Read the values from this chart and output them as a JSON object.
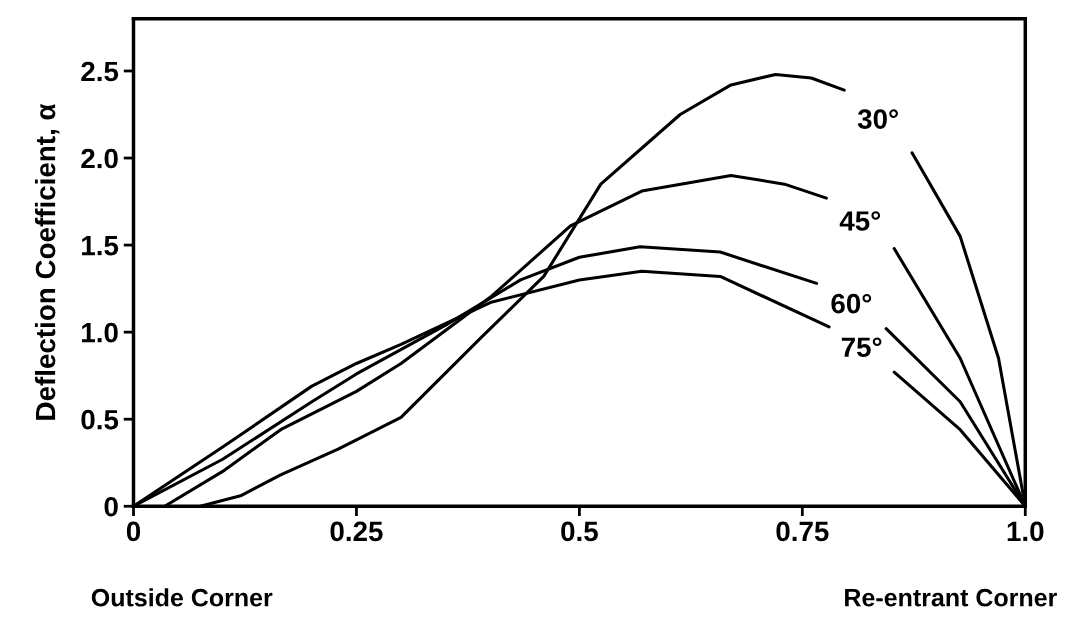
{
  "chart_data": {
    "type": "line",
    "ylabel": "Deflection Coefficient, α",
    "xlim": [
      0,
      1
    ],
    "ylim": [
      0,
      2.8
    ],
    "xticks": [
      0,
      0.25,
      0.5,
      {
        "value": 0.75,
        "label": "0.75"
      },
      {
        "value": 1,
        "label": "1.0"
      }
    ],
    "yticks": [
      0,
      0.5,
      {
        "value": 1,
        "label": "1.0"
      },
      1.5,
      {
        "value": 2,
        "label": "2.0"
      },
      2.5
    ],
    "grid": false,
    "legend": false,
    "marker": "none",
    "line_style": "solid",
    "annotations": [
      "Outside Corner",
      "Re-entrant Corner"
    ],
    "series": [
      {
        "name": "30°",
        "color": "#000000",
        "x": [
          0.075,
          0.12,
          0.165,
          0.23,
          0.3,
          0.39,
          0.46,
          0.524,
          0.613,
          0.67,
          0.72,
          0.76,
          0.797,
          0.835,
          0.873,
          0.927,
          0.97,
          1.0
        ],
        "values": [
          0,
          0.06,
          0.18,
          0.33,
          0.51,
          0.97,
          1.32,
          1.85,
          2.25,
          2.42,
          2.48,
          2.46,
          2.39,
          null,
          2.03,
          1.55,
          0.85,
          0
        ]
      },
      {
        "name": "45°",
        "color": "#000000",
        "x": [
          0.035,
          0.1,
          0.165,
          0.25,
          0.3,
          0.4,
          0.49,
          0.57,
          0.67,
          0.73,
          0.777,
          0.815,
          0.853,
          0.927,
          1.0
        ],
        "values": [
          0,
          0.2,
          0.44,
          0.66,
          0.82,
          1.2,
          1.61,
          1.81,
          1.9,
          1.85,
          1.77,
          null,
          1.48,
          0.85,
          0
        ]
      },
      {
        "name": "60°",
        "color": "#000000",
        "x": [
          0,
          0.1,
          0.2,
          0.25,
          0.35,
          0.434,
          0.5,
          0.568,
          0.658,
          0.766,
          0.805,
          0.844,
          0.927,
          1.0
        ],
        "values": [
          0,
          0.27,
          0.6,
          0.76,
          1.04,
          1.3,
          1.43,
          1.49,
          1.46,
          1.28,
          null,
          1.02,
          0.6,
          0
        ]
      },
      {
        "name": "75°",
        "color": "#000000",
        "x": [
          0,
          0.1,
          0.2,
          0.25,
          0.3,
          0.4,
          0.5,
          0.57,
          0.658,
          0.78,
          0.816,
          0.853,
          0.927,
          1.0
        ],
        "values": [
          0,
          0.34,
          0.69,
          0.82,
          0.93,
          1.17,
          1.3,
          1.35,
          1.32,
          1.03,
          null,
          0.77,
          0.44,
          0
        ]
      }
    ]
  }
}
